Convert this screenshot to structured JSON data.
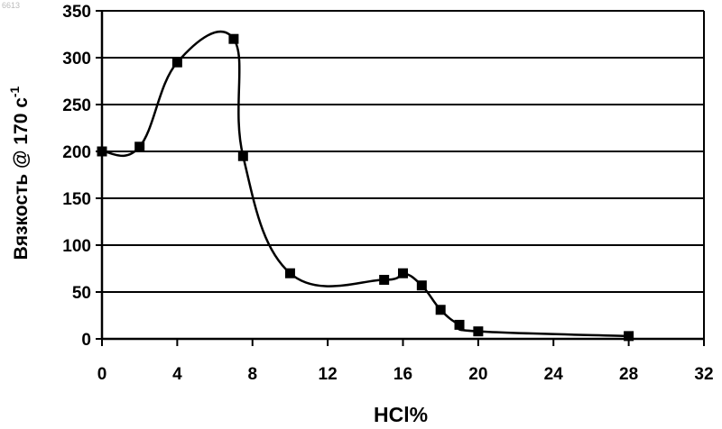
{
  "corner_mark": "6613",
  "chart_data": {
    "type": "line",
    "title": "",
    "xlabel": "HCl%",
    "ylabel": "Вязкость  @ 170 с",
    "ylabel_exponent": "-1",
    "xlim": [
      0,
      32
    ],
    "ylim": [
      0,
      350
    ],
    "x_ticks": [
      0,
      4,
      8,
      12,
      16,
      20,
      24,
      28,
      32
    ],
    "y_ticks": [
      0,
      50,
      100,
      150,
      200,
      250,
      300,
      350
    ],
    "grid": "horizontal",
    "legend": "none",
    "line_color": "#000000",
    "series": [
      {
        "x": [
          0,
          2,
          4,
          7,
          7.5,
          10,
          15,
          16,
          17,
          18,
          19,
          20,
          28
        ],
        "y": [
          200,
          205,
          295,
          320,
          195,
          70,
          63,
          70,
          57,
          31,
          15,
          8,
          3
        ]
      }
    ]
  }
}
